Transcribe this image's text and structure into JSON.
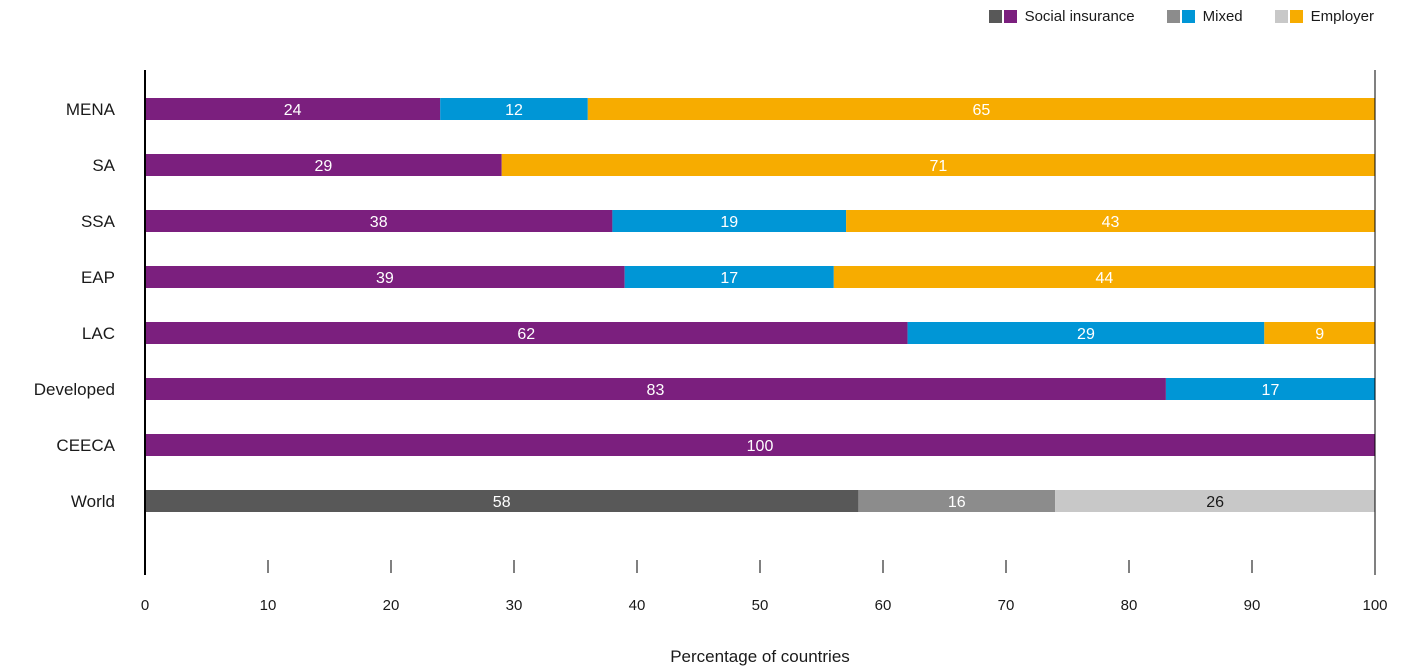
{
  "chart_data": {
    "type": "bar",
    "orientation": "horizontal",
    "stacked": true,
    "xlabel": "Percentage of countries",
    "xlim": [
      0,
      100
    ],
    "xticks": [
      0,
      10,
      20,
      30,
      40,
      50,
      60,
      70,
      80,
      90,
      100
    ],
    "categories": [
      "MENA",
      "SA",
      "SSA",
      "EAP",
      "LAC",
      "Developed",
      "CEECA",
      "World"
    ],
    "series": [
      {
        "name": "Social insurance",
        "values": [
          24,
          29,
          38,
          39,
          62,
          83,
          100,
          58
        ]
      },
      {
        "name": "Mixed",
        "values": [
          12,
          0,
          19,
          17,
          29,
          17,
          0,
          16
        ]
      },
      {
        "name": "Employer",
        "values": [
          65,
          71,
          43,
          44,
          9,
          0,
          0,
          26
        ]
      }
    ],
    "regional_colors": [
      "#7b1f7e",
      "#0096d6",
      "#f7ac00"
    ],
    "world_colors": [
      "#585858",
      "#8c8c8c",
      "#c8c8c8"
    ],
    "world_label_colors": [
      "#ffffff",
      "#ffffff",
      "#1a1a1a"
    ],
    "grid": false,
    "legend_position": "top-right"
  },
  "legend": {
    "items": [
      {
        "label": "Social insurance",
        "colors": [
          "#585858",
          "#7b1f7e"
        ]
      },
      {
        "label": "Mixed",
        "colors": [
          "#8c8c8c",
          "#0096d6"
        ]
      },
      {
        "label": "Employer",
        "colors": [
          "#c8c8c8",
          "#f7ac00"
        ]
      }
    ]
  }
}
